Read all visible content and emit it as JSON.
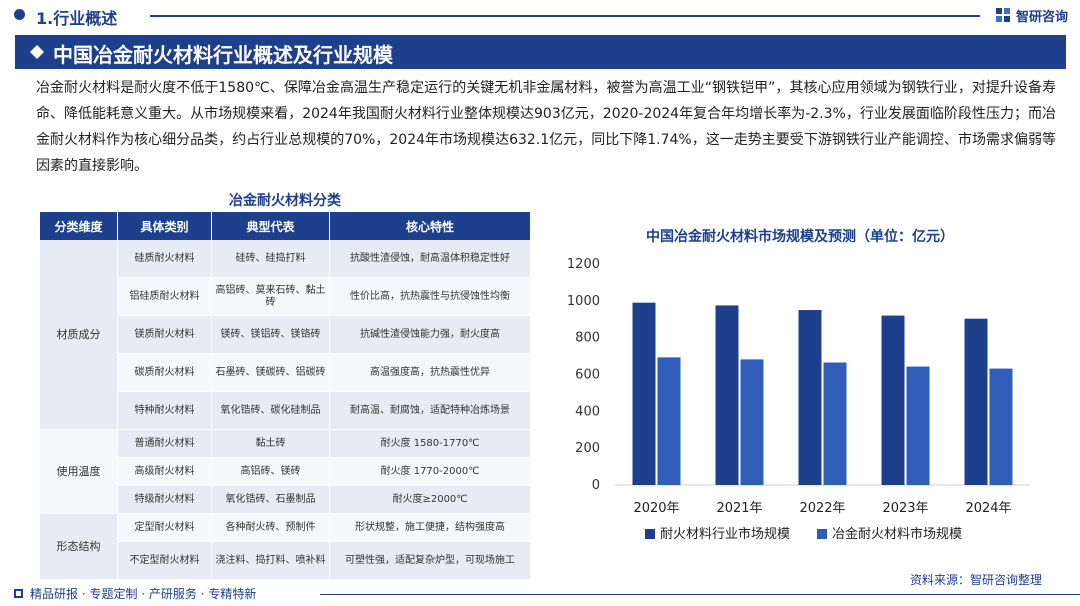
{
  "header": {
    "section_title": "1.行业概述",
    "brand": "智研咨询"
  },
  "banner": {
    "title": "中国冶金耐火材料行业概述及行业规模"
  },
  "intro": {
    "text": "冶金耐火材料是耐火度不低于1580℃、保障冶金高温生产稳定运行的关键无机非金属材料，被誉为高温工业“钢铁铠甲”，其核心应用领域为钢铁行业，对提升设备寿命、降低能耗意义重大。从市场规模来看，2024年我国耐火材料行业整体规模达903亿元，2020-2024年复合年均增长率为-2.3%，行业发展面临阶段性压力；而冶金耐火材料作为核心细分品类，约占行业总规模的70%，2024年市场规模达632.1亿元，同比下降1.74%，这一走势主要受下游钢铁行业产能调控、市场需求偏弱等因素的直接影响。"
  },
  "table": {
    "title": "冶金耐火材料分类",
    "headers": [
      "分类维度",
      "具体类别",
      "典型代表",
      "核心特性"
    ],
    "groups": [
      {
        "name": "材质成分",
        "rows": [
          {
            "category": "硅质耐火材料",
            "example": "硅砖、硅捣打料",
            "feature": "抗酸性渣侵蚀，耐高温体积稳定性好"
          },
          {
            "category": "铝硅质耐火材料",
            "example": "高铝砖、莫来石砖、黏土砖",
            "feature": "性价比高，抗热震性与抗侵蚀性均衡"
          },
          {
            "category": "镁质耐火材料",
            "example": "镁砖、镁铝砖、镁铬砖",
            "feature": "抗碱性渣侵蚀能力强，耐火度高"
          },
          {
            "category": "碳质耐火材料",
            "example": "石墨砖、镁碳砖、铝碳砖",
            "feature": "高温强度高，抗热震性优异"
          },
          {
            "category": "特种耐火材料",
            "example": "氧化锆砖、碳化硅制品",
            "feature": "耐高温、耐腐蚀，适配特种冶炼场景"
          }
        ]
      },
      {
        "name": "使用温度",
        "rows": [
          {
            "category": "普通耐火材料",
            "example": "黏土砖",
            "feature": "耐火度 1580-1770℃"
          },
          {
            "category": "高级耐火材料",
            "example": "高铝砖、镁砖",
            "feature": "耐火度 1770-2000℃"
          },
          {
            "category": "特级耐火材料",
            "example": "氧化锆砖、石墨制品",
            "feature": "耐火度≥2000℃"
          }
        ]
      },
      {
        "name": "形态结构",
        "rows": [
          {
            "category": "定型耐火材料",
            "example": "各种耐火砖、预制件",
            "feature": "形状规整，施工便捷，结构强度高"
          },
          {
            "category": "不定型耐火材料",
            "example": "浇注料、捣打料、喷补料",
            "feature": "可塑性强，适配复杂炉型，可现场施工"
          }
        ]
      }
    ]
  },
  "chart_data": {
    "type": "bar",
    "title": "中国冶金耐火材料市场规模及预测（单位：亿元）",
    "categories": [
      "2020年",
      "2021年",
      "2022年",
      "2023年",
      "2024年"
    ],
    "series": [
      {
        "name": "耐火材料行业市场规模",
        "values": [
          990,
          975,
          950,
          920,
          903
        ],
        "color": "#1e3f8c"
      },
      {
        "name": "冶金耐火材料市场规模",
        "values": [
          693,
          682,
          665,
          643,
          632.1
        ],
        "color": "#2f5db8"
      }
    ],
    "yticks": [
      0,
      200,
      400,
      600,
      800,
      1000,
      1200
    ],
    "ylim": [
      0,
      1200
    ],
    "grid": false,
    "legend_position": "bottom"
  },
  "source": "资料来源：智研咨询整理",
  "footer": {
    "text": "精品研报 · 专题定制 · 产研服务 · 专精特新"
  }
}
